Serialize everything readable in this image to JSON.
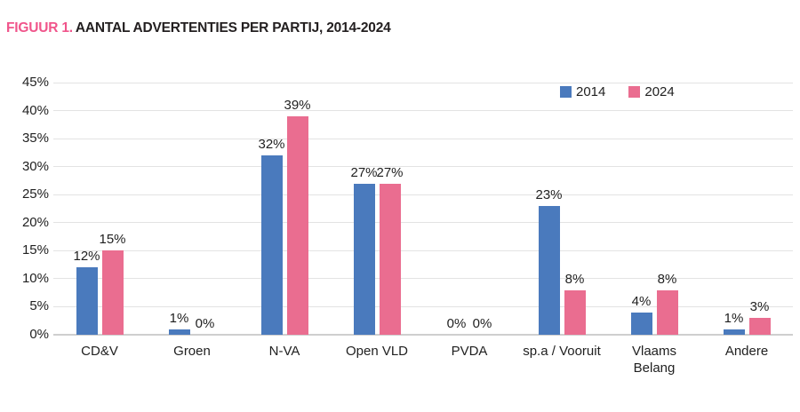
{
  "figure": {
    "label": "FIGUUR 1.",
    "title": "AANTAL ADVERTENTIES PER PARTIJ, 2014-2024"
  },
  "chart_data": {
    "type": "bar",
    "categories": [
      "CD&V",
      "Groen",
      "N-VA",
      "Open VLD",
      "PVDA",
      "sp.a / Vooruit",
      "Vlaams\nBelang",
      "Andere"
    ],
    "series": [
      {
        "name": "2014",
        "color": "#4a7abd",
        "values": [
          12,
          1,
          32,
          27,
          0,
          23,
          4,
          1
        ]
      },
      {
        "name": "2024",
        "color": "#ea6d90",
        "values": [
          15,
          0,
          39,
          27,
          0,
          8,
          8,
          3
        ]
      }
    ],
    "value_suffix": "%",
    "data_labels": true,
    "title": "AANTAL ADVERTENTIES PER PARTIJ, 2014-2024",
    "xlabel": "",
    "ylabel": "",
    "ylim": [
      0,
      45
    ],
    "ytick_step": 5,
    "yticks": [
      "45%",
      "40%",
      "35%",
      "30%",
      "25%",
      "20%",
      "15%",
      "10%",
      "5%",
      "0%"
    ],
    "grid": true,
    "legend_position": "top-right"
  },
  "colors": {
    "accent_pink": "#f0558b",
    "bar_blue": "#4a7abd",
    "bar_pink": "#ea6d90",
    "gridline": "#e3e3e3",
    "baseline": "#cfcfcf",
    "text": "#212121"
  }
}
